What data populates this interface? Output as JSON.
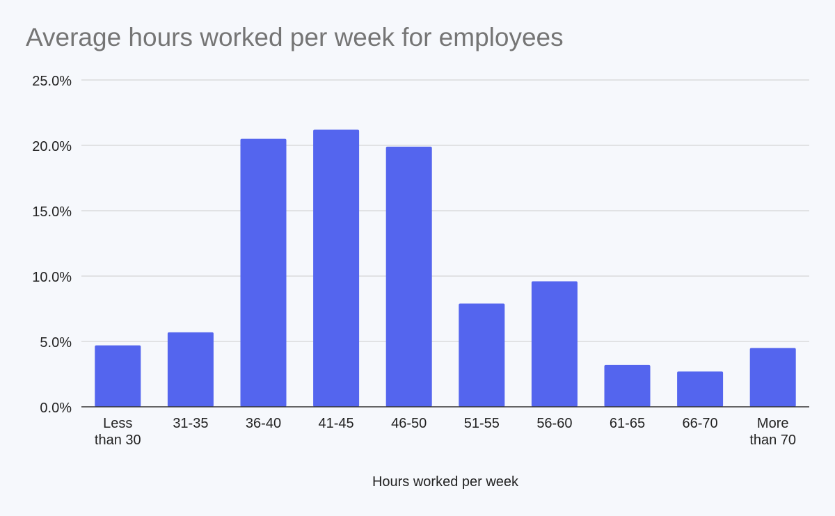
{
  "chart_data": {
    "type": "bar",
    "title": "Average hours worked per week for employees",
    "xlabel": "Hours worked per week",
    "ylabel": "",
    "categories": [
      [
        "Less",
        "than 30"
      ],
      [
        "31-35"
      ],
      [
        "36-40"
      ],
      [
        "41-45"
      ],
      [
        "46-50"
      ],
      [
        "51-55"
      ],
      [
        "56-60"
      ],
      [
        "61-65"
      ],
      [
        "66-70"
      ],
      [
        "More",
        "than 70"
      ]
    ],
    "values": [
      4.7,
      5.7,
      20.5,
      21.2,
      19.9,
      7.9,
      9.6,
      3.2,
      2.7,
      4.5
    ],
    "ylim": [
      0,
      25
    ],
    "yticks": [
      0,
      5,
      10,
      15,
      20,
      25
    ],
    "ytick_labels": [
      "0.0%",
      "5.0%",
      "10.0%",
      "15.0%",
      "20.0%",
      "25.0%"
    ],
    "grid": true,
    "legend": "none",
    "colors": {
      "bar": "#5465ee",
      "grid": "#cccccc",
      "axis": "#333333",
      "title": "#757575",
      "text": "#222222",
      "background": "#f6f8fc"
    }
  }
}
